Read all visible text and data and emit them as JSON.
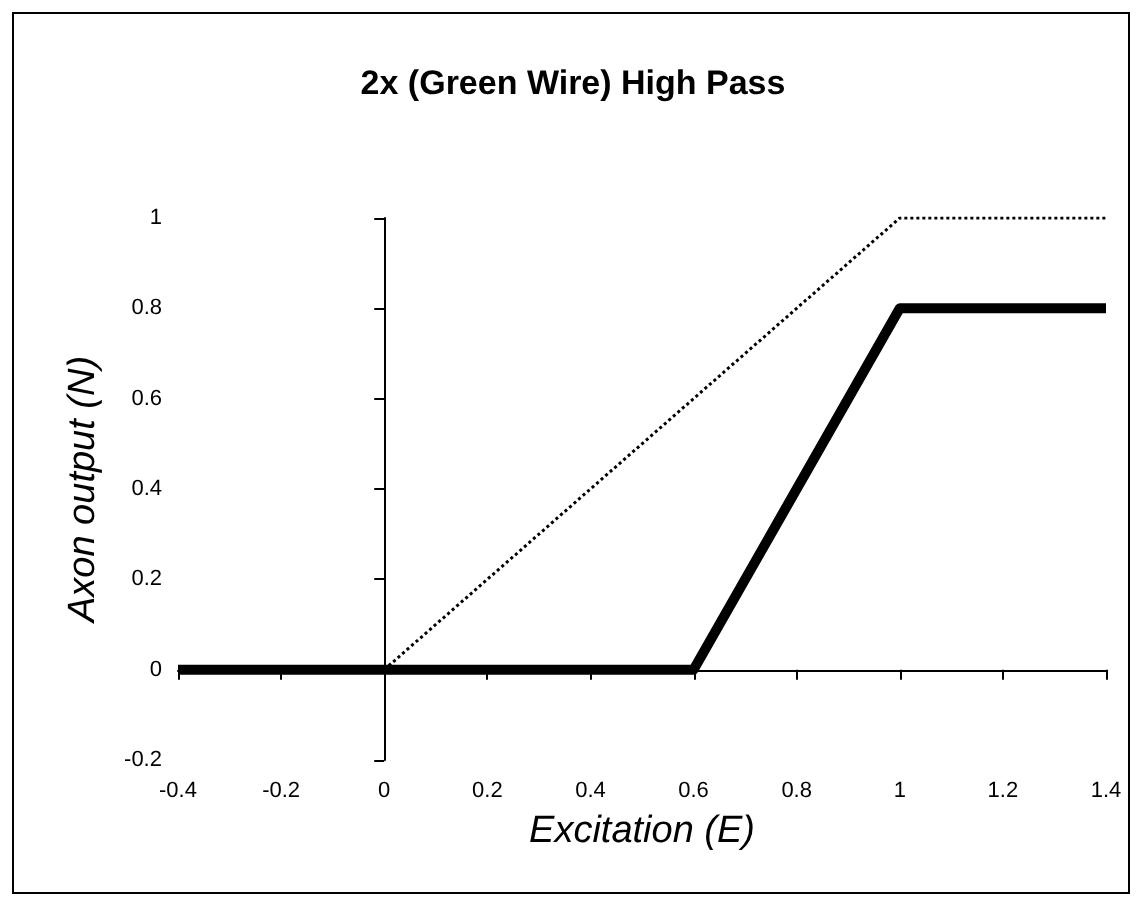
{
  "chart_data": {
    "type": "line",
    "title": "2x (Green Wire) High Pass",
    "xlabel": "Excitation (E)",
    "ylabel": "Axon output (N)",
    "series": [
      {
        "x": [
          0,
          1,
          1.4
        ],
        "values": [
          0,
          1,
          1
        ],
        "color": "#000000",
        "line_style": "dotted"
      },
      {
        "x": [
          -0.4,
          0.6,
          1,
          1.4
        ],
        "values": [
          0,
          0,
          0.8,
          0.8
        ],
        "color": "#000000",
        "line_style": "solid"
      }
    ],
    "xlim": [
      -0.4,
      1.4
    ],
    "xticks": [
      -0.4,
      -0.2,
      0,
      0.2,
      0.4,
      0.6,
      0.8,
      1,
      1.2,
      1.4
    ],
    "ylim": [
      -0.2,
      1
    ],
    "yticks": [
      -0.2,
      0,
      0.2,
      0.4,
      0.6,
      0.8,
      1
    ],
    "marker": "none"
  }
}
